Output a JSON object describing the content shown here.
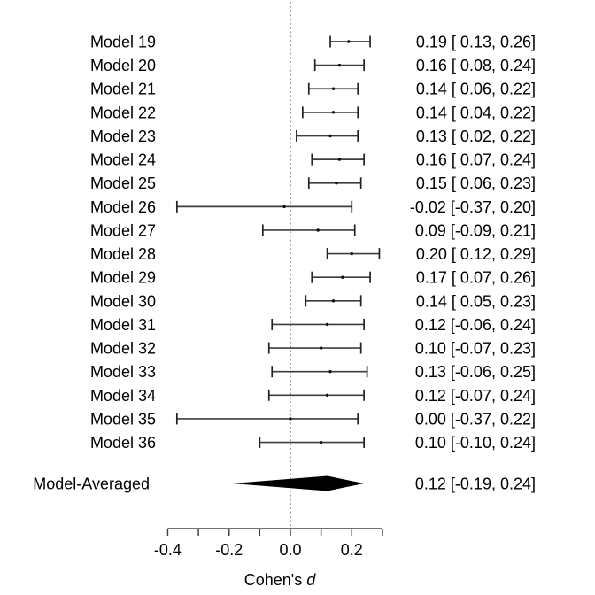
{
  "figure": {
    "background": "#ffffff"
  },
  "chart_data": {
    "type": "forest",
    "xlabel_plain": "Cohen's ",
    "xlabel_italic": "d",
    "xlim": [
      -0.4,
      0.3
    ],
    "zero_line": 0.0,
    "grid": false,
    "axis_ticks": [
      {
        "value": -0.4,
        "label": "-0.4"
      },
      {
        "value": -0.3,
        "label": ""
      },
      {
        "value": -0.2,
        "label": "-0.2"
      },
      {
        "value": -0.1,
        "label": ""
      },
      {
        "value": 0.0,
        "label": "0.0"
      },
      {
        "value": 0.1,
        "label": ""
      },
      {
        "value": 0.2,
        "label": "0.2"
      },
      {
        "value": 0.3,
        "label": ""
      }
    ],
    "rows": [
      {
        "label": "Model 19",
        "estimate": 0.19,
        "lower": 0.13,
        "upper": 0.26,
        "annotation": "0.19 [ 0.13, 0.26]"
      },
      {
        "label": "Model 20",
        "estimate": 0.16,
        "lower": 0.08,
        "upper": 0.24,
        "annotation": "0.16 [ 0.08, 0.24]"
      },
      {
        "label": "Model 21",
        "estimate": 0.14,
        "lower": 0.06,
        "upper": 0.22,
        "annotation": "0.14 [ 0.06, 0.22]"
      },
      {
        "label": "Model 22",
        "estimate": 0.14,
        "lower": 0.04,
        "upper": 0.22,
        "annotation": "0.14 [ 0.04, 0.22]"
      },
      {
        "label": "Model 23",
        "estimate": 0.13,
        "lower": 0.02,
        "upper": 0.22,
        "annotation": "0.13 [ 0.02, 0.22]"
      },
      {
        "label": "Model 24",
        "estimate": 0.16,
        "lower": 0.07,
        "upper": 0.24,
        "annotation": "0.16 [ 0.07, 0.24]"
      },
      {
        "label": "Model 25",
        "estimate": 0.15,
        "lower": 0.06,
        "upper": 0.23,
        "annotation": "0.15 [ 0.06, 0.23]"
      },
      {
        "label": "Model 26",
        "estimate": -0.02,
        "lower": -0.37,
        "upper": 0.2,
        "annotation": "-0.02 [-0.37, 0.20]"
      },
      {
        "label": "Model 27",
        "estimate": 0.09,
        "lower": -0.09,
        "upper": 0.21,
        "annotation": "0.09 [-0.09, 0.21]"
      },
      {
        "label": "Model 28",
        "estimate": 0.2,
        "lower": 0.12,
        "upper": 0.29,
        "annotation": "0.20 [ 0.12, 0.29]"
      },
      {
        "label": "Model 29",
        "estimate": 0.17,
        "lower": 0.07,
        "upper": 0.26,
        "annotation": "0.17 [ 0.07, 0.26]"
      },
      {
        "label": "Model 30",
        "estimate": 0.14,
        "lower": 0.05,
        "upper": 0.23,
        "annotation": "0.14 [ 0.05, 0.23]"
      },
      {
        "label": "Model 31",
        "estimate": 0.12,
        "lower": -0.06,
        "upper": 0.24,
        "annotation": "0.12 [-0.06, 0.24]"
      },
      {
        "label": "Model 32",
        "estimate": 0.1,
        "lower": -0.07,
        "upper": 0.23,
        "annotation": "0.10 [-0.07, 0.23]"
      },
      {
        "label": "Model 33",
        "estimate": 0.13,
        "lower": -0.06,
        "upper": 0.25,
        "annotation": "0.13 [-0.06, 0.25]"
      },
      {
        "label": "Model 34",
        "estimate": 0.12,
        "lower": -0.07,
        "upper": 0.24,
        "annotation": "0.12 [-0.07, 0.24]"
      },
      {
        "label": "Model 35",
        "estimate": 0.0,
        "lower": -0.37,
        "upper": 0.22,
        "annotation": "0.00 [-0.37, 0.22]"
      },
      {
        "label": "Model 36",
        "estimate": 0.1,
        "lower": -0.1,
        "upper": 0.24,
        "annotation": "0.10 [-0.10, 0.24]"
      }
    ],
    "summary": {
      "label": "Model-Averaged",
      "estimate": 0.12,
      "lower": -0.19,
      "upper": 0.24,
      "annotation": "0.12 [-0.19, 0.24]"
    }
  },
  "colors": {
    "background": "#ffffff",
    "text": "#000000",
    "ci_line": "#3d3d3d",
    "ci_cap": "#222222",
    "estimate_point": "#111111",
    "axis": "#444444",
    "zero_line": "#555555",
    "diamond": "#000000"
  }
}
